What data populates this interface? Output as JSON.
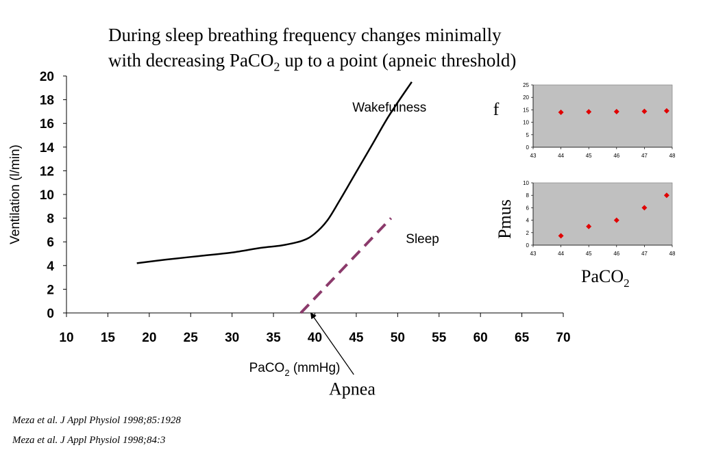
{
  "title": {
    "line1": "During sleep breathing frequency changes minimally",
    "line2_pre": "with decreasing PaCO",
    "line2_sub": "2",
    "line2_post": " up to a point (apneic threshold)"
  },
  "references": [
    "Meza et al. J Appl Physiol 1998;85:1928",
    "Meza et al. J Appl Physiol 1998;84:3"
  ],
  "colors": {
    "line": "#000000",
    "sleep_line": "#8B3A6B",
    "inset_bg": "#C0C0C0",
    "marker": "#E00000"
  },
  "chart_data": [
    {
      "type": "line",
      "xlabel_main": "PaCO",
      "xlabel_sub": "2",
      "xlabel_unit": " (mmHg)",
      "ylabel": "Ventilation (l/min)",
      "xlim": [
        10,
        70
      ],
      "ylim": [
        0,
        20
      ],
      "xticks": [
        10,
        15,
        20,
        25,
        30,
        35,
        40,
        45,
        50,
        55,
        60,
        65,
        70
      ],
      "yticks": [
        0,
        2,
        4,
        6,
        8,
        10,
        12,
        14,
        16,
        18,
        20
      ],
      "series": [
        {
          "name": "Wakefulness",
          "style": "solid",
          "x": [
            18.5,
            22,
            26,
            30,
            33.5,
            36,
            38.5,
            40,
            41.5,
            43,
            45,
            47,
            49,
            51.7
          ],
          "y": [
            4.2,
            4.5,
            4.8,
            5.1,
            5.5,
            5.7,
            6.1,
            6.7,
            7.8,
            9.5,
            11.9,
            14.3,
            16.7,
            19.5
          ]
        },
        {
          "name": "Sleep",
          "style": "dashed",
          "x": [
            38.3,
            49.2
          ],
          "y": [
            0,
            8
          ]
        }
      ],
      "annotations": [
        {
          "text": "Wakefulness",
          "x": 49,
          "y": 17
        },
        {
          "text": "Sleep",
          "x": 53,
          "y": 5.9
        },
        {
          "text": "Apnea",
          "x": 41.7,
          "y": -6.9,
          "arrow_to": [
            39.5,
            0
          ],
          "arrow_from": [
            44.7,
            -5.2
          ]
        }
      ]
    },
    {
      "type": "scatter",
      "ylabel": "f",
      "xlim": [
        43,
        48
      ],
      "ylim": [
        0,
        25
      ],
      "xticks": [
        43,
        44,
        45,
        46,
        47,
        48
      ],
      "yticks": [
        0,
        5,
        10,
        15,
        20,
        25
      ],
      "x": [
        44,
        45,
        46,
        47,
        47.8
      ],
      "y": [
        14,
        14.2,
        14.3,
        14.4,
        14.6
      ]
    },
    {
      "type": "scatter",
      "ylabel": "Pmus",
      "xlabel_main": "PaCO",
      "xlabel_sub": "2",
      "xlim": [
        43,
        48
      ],
      "ylim": [
        0,
        10
      ],
      "xticks": [
        43,
        44,
        45,
        46,
        47,
        48
      ],
      "yticks": [
        0,
        2,
        4,
        6,
        8,
        10
      ],
      "x": [
        44,
        45,
        46,
        47,
        47.8
      ],
      "y": [
        1.5,
        3,
        4,
        6,
        8
      ]
    }
  ]
}
